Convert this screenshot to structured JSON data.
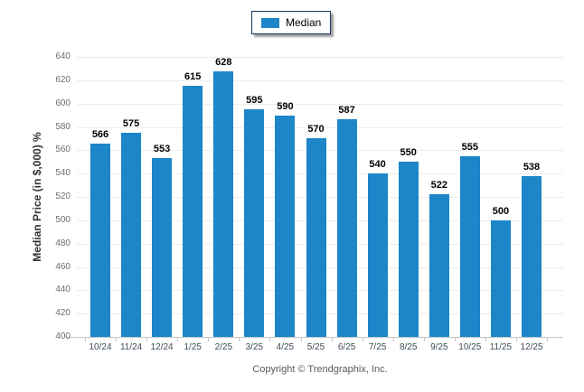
{
  "chart_data": {
    "type": "bar",
    "categories": [
      "10/24",
      "11/24",
      "12/24",
      "1/25",
      "2/25",
      "3/25",
      "4/25",
      "5/25",
      "6/25",
      "7/25",
      "8/25",
      "9/25",
      "10/25",
      "11/25",
      "12/25"
    ],
    "series": [
      {
        "name": "Median",
        "values": [
          566,
          575,
          553,
          615,
          628,
          595,
          590,
          570,
          587,
          540,
          550,
          522,
          555,
          500,
          538
        ]
      }
    ],
    "title": "",
    "xlabel": "",
    "ylabel": "Median Price (in $,000) %",
    "ylim": [
      400,
      640
    ],
    "ytick_step": 20,
    "yticks": [
      400,
      420,
      440,
      460,
      480,
      500,
      520,
      540,
      560,
      580,
      600,
      620,
      640
    ],
    "grid": "horizontal",
    "legend_position": "top-center",
    "bar_color": "#1c86c8",
    "value_labels_shown": true
  },
  "legend": {
    "label": "Median"
  },
  "footer": {
    "copyright": "Copyright © Trendgraphix, Inc."
  }
}
